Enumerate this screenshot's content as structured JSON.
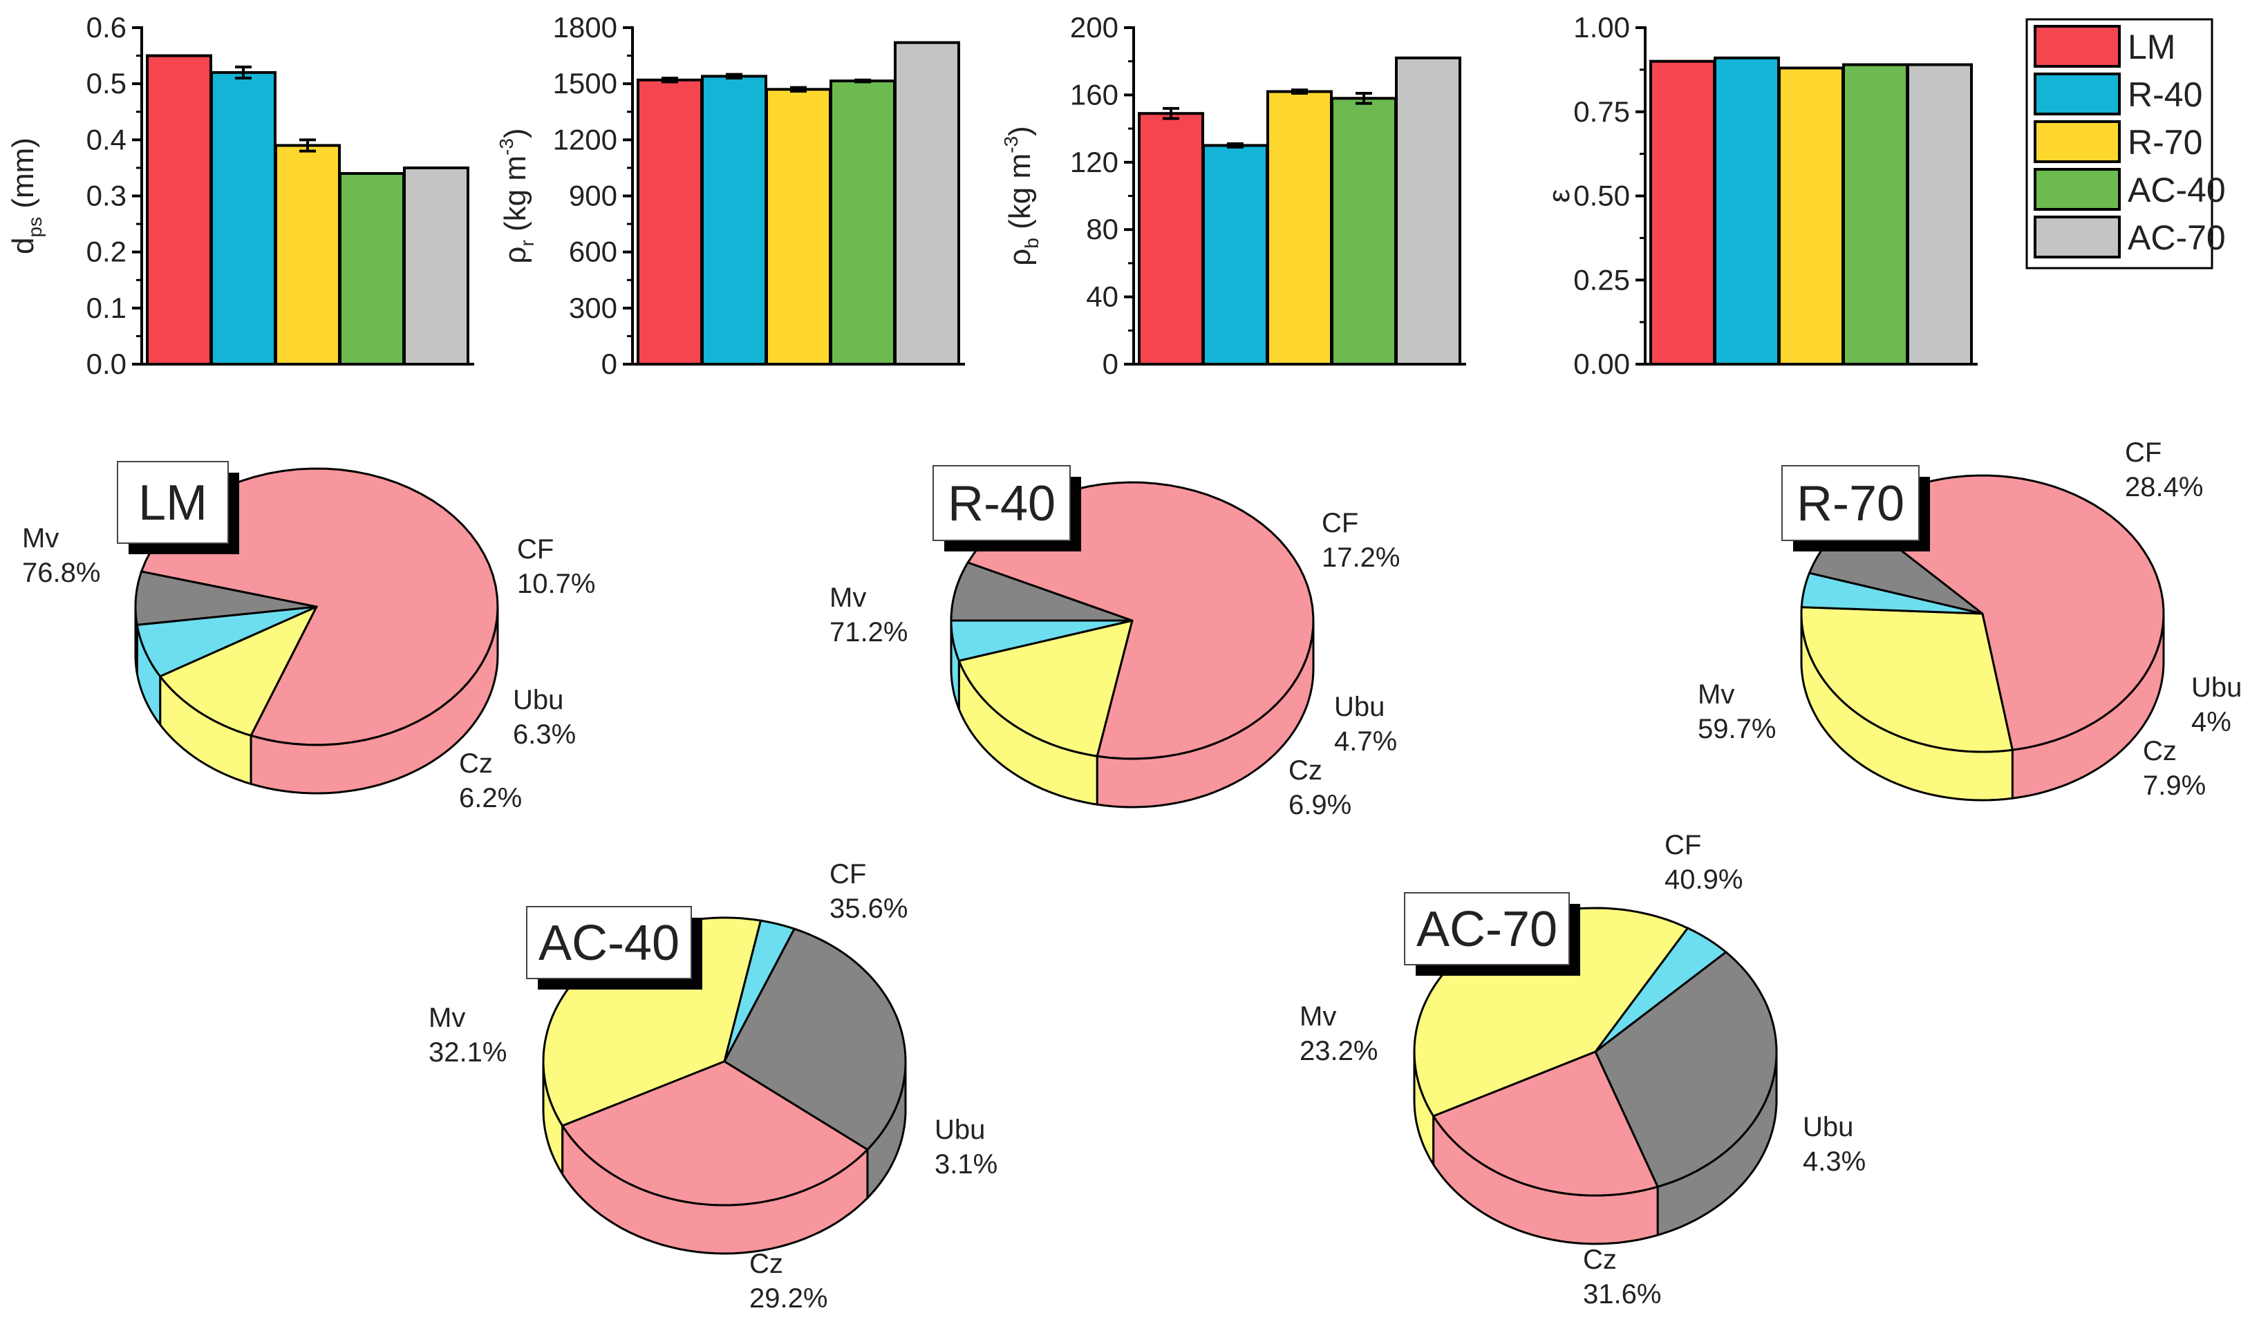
{
  "colors": {
    "LM": "#f5454f",
    "R-40": "#13b4d6",
    "R-70": "#fdd72d",
    "AC-40": "#6dba51",
    "AC-70": "#c4c4c4",
    "pie_Mv": "#f7969c",
    "pie_CF": "#fdfb7f",
    "pie_Ubu": "#6ddeef",
    "pie_Cz": "#858585"
  },
  "legend": {
    "title": "",
    "items": [
      "LM",
      "R-40",
      "R-70",
      "AC-40",
      "AC-70"
    ],
    "placement": "top-right"
  },
  "chart_data": [
    {
      "type": "bar",
      "id": "dps",
      "ylabel_main": "d",
      "ylabel_sub": "ps",
      "ylabel_tail": " (mm)",
      "categories": [
        "LM",
        "R-40",
        "R-70",
        "AC-40",
        "AC-70"
      ],
      "values": [
        0.55,
        0.52,
        0.39,
        0.34,
        0.35
      ],
      "errors": [
        0,
        0.01,
        0.01,
        0,
        0
      ],
      "ylim": [
        0,
        0.6
      ],
      "ticks": [
        "0.0",
        "0.1",
        "0.2",
        "0.3",
        "0.4",
        "0.5",
        "0.6"
      ]
    },
    {
      "type": "bar",
      "id": "rho_r",
      "ylabel_main": "ρ",
      "ylabel_sub": "r",
      "ylabel_tail": " (kg m",
      "ylabel_sup": "-3",
      "ylabel_end": ")",
      "categories": [
        "LM",
        "R-40",
        "R-70",
        "AC-40",
        "AC-70"
      ],
      "values": [
        1520,
        1540,
        1470,
        1515,
        1720
      ],
      "errors": [
        10,
        10,
        10,
        5,
        0
      ],
      "ylim": [
        0,
        1800
      ],
      "ticks": [
        "0",
        "300",
        "600",
        "900",
        "1200",
        "1500",
        "1800"
      ]
    },
    {
      "type": "bar",
      "id": "rho_b",
      "ylabel_main": "ρ",
      "ylabel_sub": "b",
      "ylabel_tail": " (kg m",
      "ylabel_sup": "-3",
      "ylabel_end": ")",
      "categories": [
        "LM",
        "R-40",
        "R-70",
        "AC-40",
        "AC-70"
      ],
      "values": [
        149,
        130,
        162,
        158,
        182
      ],
      "errors": [
        3,
        1,
        1,
        3,
        0
      ],
      "ylim": [
        0,
        200
      ],
      "ticks": [
        "0",
        "40",
        "80",
        "120",
        "160",
        "200"
      ]
    },
    {
      "type": "bar",
      "id": "epsilon",
      "ylabel_main": "ε",
      "ylabel_sub": "",
      "ylabel_tail": "",
      "categories": [
        "LM",
        "R-40",
        "R-70",
        "AC-40",
        "AC-70"
      ],
      "values": [
        0.9,
        0.91,
        0.88,
        0.89,
        0.89
      ],
      "errors": [
        0,
        0,
        0,
        0,
        0
      ],
      "ylim": [
        0,
        1.0
      ],
      "ticks": [
        "0.00",
        "0.25",
        "0.50",
        "0.75",
        "1.00"
      ]
    },
    {
      "type": "pie",
      "title": "LM",
      "slices": [
        {
          "name": "Mv",
          "value": 76.8,
          "label": "76.8%"
        },
        {
          "name": "CF",
          "value": 10.7,
          "label": "10.7%"
        },
        {
          "name": "Ubu",
          "value": 6.3,
          "label": "6.3%"
        },
        {
          "name": "Cz",
          "value": 6.2,
          "label": "6.2%"
        }
      ]
    },
    {
      "type": "pie",
      "title": "R-40",
      "slices": [
        {
          "name": "Mv",
          "value": 71.2,
          "label": "71.2%"
        },
        {
          "name": "CF",
          "value": 17.2,
          "label": "17.2%"
        },
        {
          "name": "Ubu",
          "value": 4.7,
          "label": "4.7%"
        },
        {
          "name": "Cz",
          "value": 6.9,
          "label": "6.9%"
        }
      ]
    },
    {
      "type": "pie",
      "title": "R-70",
      "slices": [
        {
          "name": "Mv",
          "value": 59.7,
          "label": "59.7%"
        },
        {
          "name": "CF",
          "value": 28.4,
          "label": "28.4%"
        },
        {
          "name": "Ubu",
          "value": 4.0,
          "label": "4%"
        },
        {
          "name": "Cz",
          "value": 7.9,
          "label": "7.9%"
        }
      ]
    },
    {
      "type": "pie",
      "title": "AC-40",
      "slices": [
        {
          "name": "Mv",
          "value": 32.1,
          "label": "32.1%"
        },
        {
          "name": "CF",
          "value": 35.6,
          "label": "35.6%"
        },
        {
          "name": "Ubu",
          "value": 3.1,
          "label": "3.1%"
        },
        {
          "name": "Cz",
          "value": 29.2,
          "label": "29.2%"
        }
      ]
    },
    {
      "type": "pie",
      "title": "AC-70",
      "slices": [
        {
          "name": "Mv",
          "value": 23.2,
          "label": "23.2%"
        },
        {
          "name": "CF",
          "value": 40.9,
          "label": "40.9%"
        },
        {
          "name": "Ubu",
          "value": 4.3,
          "label": "4.3%"
        },
        {
          "name": "Cz",
          "value": 31.6,
          "label": "31.6%"
        }
      ]
    }
  ]
}
